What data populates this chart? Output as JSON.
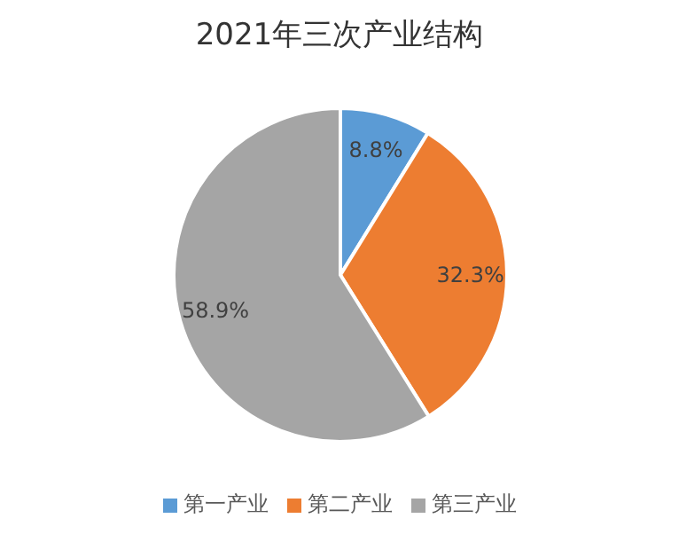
{
  "chart_data": {
    "type": "pie",
    "title": "2021年三次产业结构",
    "categories": [
      "第一产业",
      "第二产业",
      "第三产业"
    ],
    "values": [
      8.8,
      32.3,
      58.9
    ],
    "colors": [
      "#5b9bd5",
      "#ed7d31",
      "#a5a5a5"
    ],
    "value_labels": [
      "8.8%",
      "32.3%",
      "58.9%"
    ],
    "legend": "bottom"
  }
}
